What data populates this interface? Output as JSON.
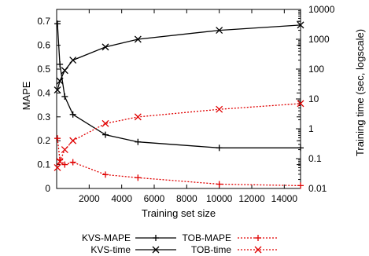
{
  "chart_data": {
    "type": "line",
    "xlabel": "Training set size",
    "ylabel_left": "MAPE",
    "ylabel_right": "Training time (sec, logscale)",
    "xlim": [
      0,
      15000
    ],
    "ylim_left": [
      0,
      0.75
    ],
    "ylim_right": [
      0.01,
      10000
    ],
    "y_right_scale": "log",
    "grid": false,
    "x_ticks": [
      2000,
      4000,
      6000,
      8000,
      10000,
      12000,
      14000
    ],
    "x_tick_labels": [
      "2000",
      "4000",
      "6000",
      "8000",
      "10000",
      "12000",
      "14000"
    ],
    "y_left_ticks": [
      0,
      0.1,
      0.2,
      0.3,
      0.4,
      0.5,
      0.6,
      0.7
    ],
    "y_left_tick_labels": [
      "0",
      "0.1",
      "0.2",
      "0.3",
      "0.4",
      "0.5",
      "0.6",
      "0.7"
    ],
    "y_right_ticks": [
      0.01,
      0.1,
      1,
      10,
      100,
      1000,
      10000
    ],
    "y_right_tick_labels": [
      "0.01",
      "0.1",
      "1",
      "10",
      "100",
      "1000",
      "10000"
    ],
    "legend_position": "bottom",
    "series": [
      {
        "name": "KVS-MAPE",
        "axis": "left",
        "color": "#000000",
        "style": "solid",
        "marker": "plus",
        "x": [
          50,
          200,
          500,
          1000,
          3000,
          5000,
          10000,
          15000
        ],
        "y": [
          0.69,
          0.52,
          0.385,
          0.31,
          0.225,
          0.195,
          0.17,
          0.17
        ]
      },
      {
        "name": "TOB-MAPE",
        "axis": "left",
        "color": "#e00000",
        "style": "dotted",
        "marker": "plus",
        "x": [
          50,
          200,
          500,
          1000,
          3000,
          5000,
          10000,
          15000
        ],
        "y": [
          0.21,
          0.12,
          0.1,
          0.11,
          0.058,
          0.045,
          0.018,
          0.012
        ]
      },
      {
        "name": "KVS-time",
        "axis": "right",
        "color": "#000000",
        "style": "solid",
        "marker": "cross",
        "x": [
          50,
          200,
          500,
          1000,
          3000,
          5000,
          10000,
          15000
        ],
        "y": [
          20,
          40,
          90,
          200,
          550,
          1000,
          2000,
          3000
        ]
      },
      {
        "name": "TOB-time",
        "axis": "right",
        "color": "#e00000",
        "style": "dotted",
        "marker": "cross",
        "x": [
          50,
          200,
          500,
          1000,
          3000,
          5000,
          10000,
          15000
        ],
        "y": [
          0.05,
          0.08,
          0.2,
          0.4,
          1.5,
          2.5,
          4.5,
          7
        ]
      }
    ]
  }
}
